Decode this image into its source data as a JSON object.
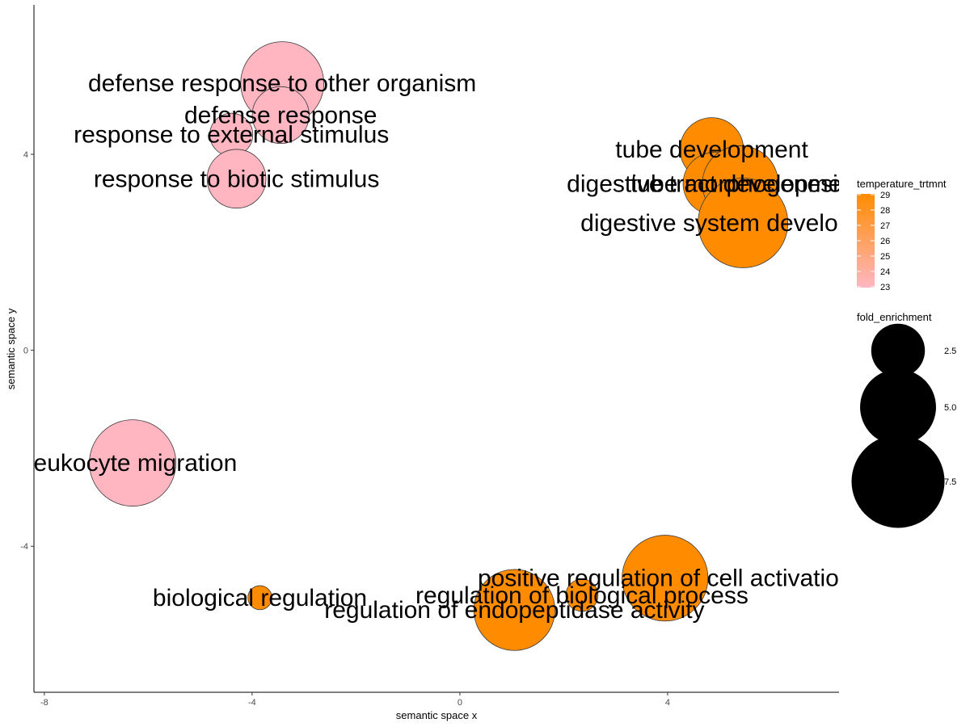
{
  "chart_data": {
    "type": "scatter",
    "xlabel": "semantic space x",
    "ylabel": "semantic space y",
    "xlim": [
      -8.2,
      7.3
    ],
    "ylim": [
      -6.98,
      7.05
    ],
    "x_ticks": [
      -8,
      -4,
      0,
      4
    ],
    "y_ticks": [
      -4,
      0,
      4
    ],
    "x_tick_labels": [
      "-8",
      "-4",
      "0",
      "4"
    ],
    "y_tick_labels": [
      "-4",
      "0",
      "4"
    ],
    "grid": false,
    "color_legend": {
      "title": "temperature_trtmnt",
      "min": 23,
      "max": 29,
      "low_color": "#FFB6C1",
      "high_color": "#FF8C00",
      "ticks": [
        29,
        28,
        27,
        26,
        25,
        24,
        23
      ],
      "tick_labels": [
        "29",
        "28",
        "27",
        "26",
        "25",
        "24",
        "23"
      ]
    },
    "size_legend": {
      "title": "fold_enrichment",
      "values": [
        2.5,
        5.0,
        7.5
      ],
      "labels": [
        "2.5",
        "5.0",
        "7.5"
      ],
      "color": "#000000"
    },
    "points": [
      {
        "label": "defense response to other organism",
        "x": -3.42,
        "y": 5.45,
        "fold_enrichment": 6.0,
        "temperature_trtmnt": 23
      },
      {
        "label": "defense response",
        "x": -3.45,
        "y": 4.8,
        "fold_enrichment": 2.8,
        "temperature_trtmnt": 23
      },
      {
        "label": "response to external stimulus",
        "x": -4.4,
        "y": 4.4,
        "fold_enrichment": 1.6,
        "temperature_trtmnt": 23
      },
      {
        "label": "response to biotic stimulus",
        "x": -4.3,
        "y": 3.5,
        "fold_enrichment": 3.0,
        "temperature_trtmnt": 23
      },
      {
        "label": "leukocyte migration",
        "x": -6.3,
        "y": -2.3,
        "fold_enrichment": 6.5,
        "temperature_trtmnt": 23
      },
      {
        "label": "tube development",
        "x": 4.85,
        "y": 4.1,
        "fold_enrichment": 3.5,
        "temperature_trtmnt": 29
      },
      {
        "label": "digestive tract development",
        "x": 4.9,
        "y": 3.4,
        "fold_enrichment": 3.4,
        "temperature_trtmnt": 29
      },
      {
        "label": "tube morphogenesis",
        "x": 5.4,
        "y": 3.4,
        "fold_enrichment": 5.0,
        "temperature_trtmnt": 29
      },
      {
        "label": "digestive system development",
        "x": 5.45,
        "y": 2.6,
        "fold_enrichment": 7.0,
        "temperature_trtmnt": 29
      },
      {
        "label": "positive regulation of cell activation",
        "x": 3.95,
        "y": -4.65,
        "fold_enrichment": 6.4,
        "temperature_trtmnt": 29
      },
      {
        "label": "regulation of biological process",
        "x": 2.35,
        "y": -5.0,
        "fold_enrichment": 0.9,
        "temperature_trtmnt": 29
      },
      {
        "label": "regulation of endopeptidase activity",
        "x": 1.05,
        "y": -5.3,
        "fold_enrichment": 5.7,
        "temperature_trtmnt": 29
      },
      {
        "label": "biological regulation",
        "x": -3.85,
        "y": -5.05,
        "fold_enrichment": 0.5,
        "temperature_trtmnt": 29
      }
    ]
  }
}
